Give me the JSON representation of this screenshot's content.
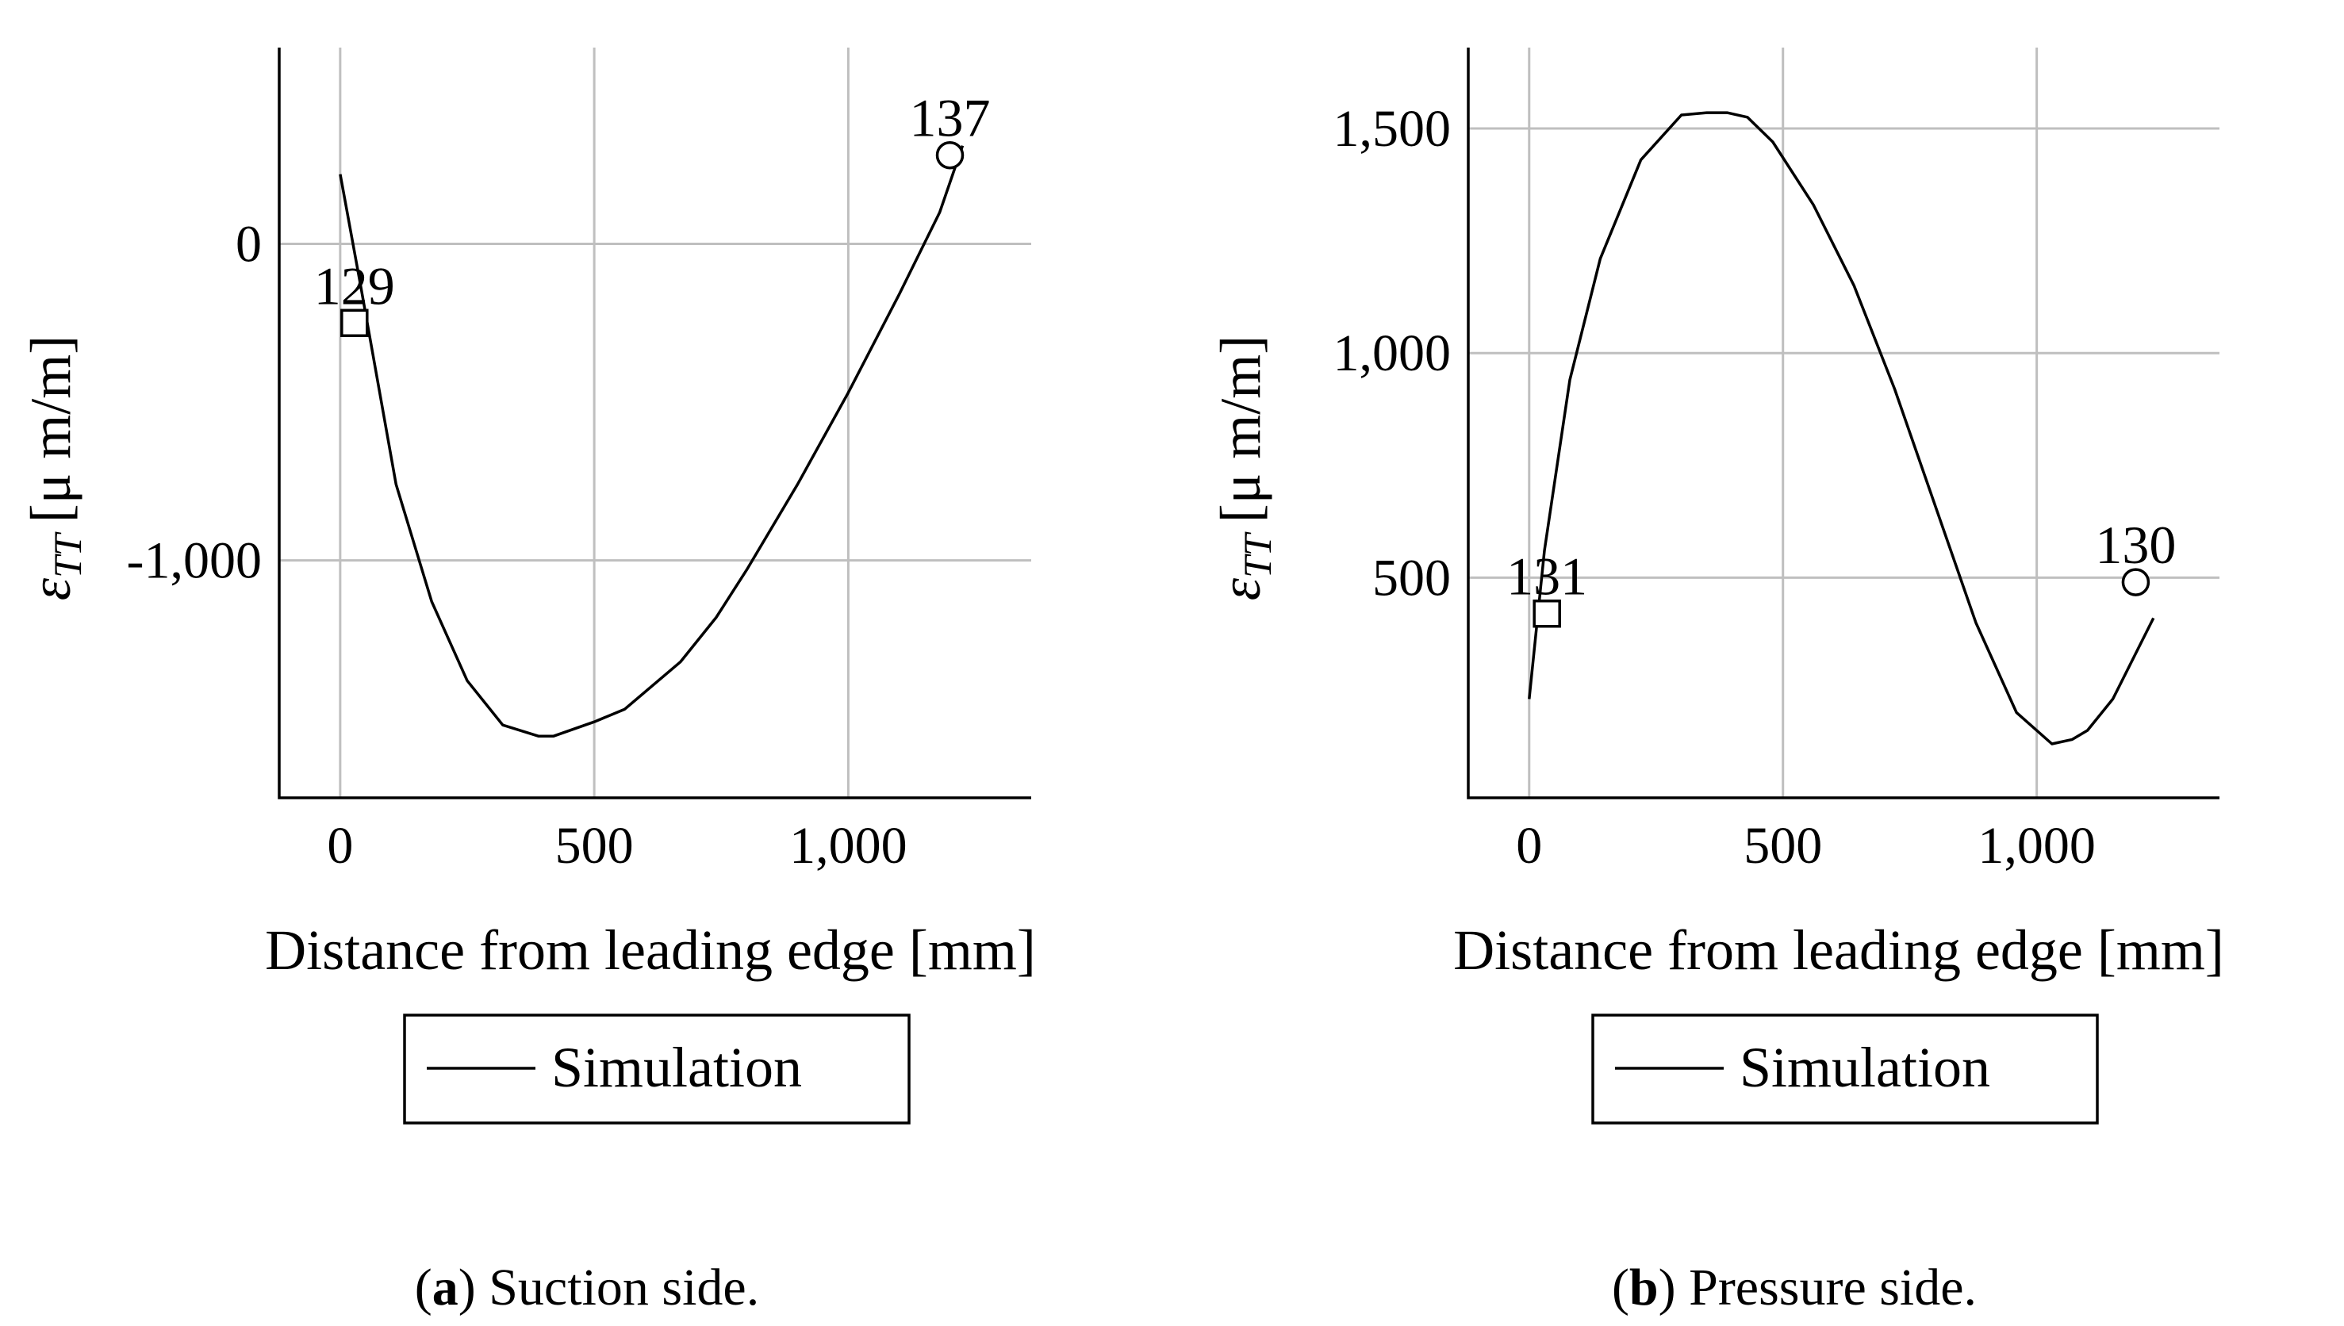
{
  "chart_data": [
    {
      "type": "line",
      "panel": "a",
      "caption_letter": "a",
      "caption_text": ") Suction side.",
      "xlabel": "Distance from leading edge [mm]",
      "ylabel": "εTT [μ m/m]",
      "ylabel_main": "ε",
      "ylabel_sub": "TT",
      "ylabel_unit": "[μ m/m]",
      "xlim": [
        -120,
        1360
      ],
      "ylim": [
        -1750,
        620
      ],
      "xticks": [
        0,
        500,
        1000
      ],
      "xtick_labels": [
        "0",
        "500",
        "1,000"
      ],
      "yticks": [
        0,
        -1000
      ],
      "ytick_labels": [
        "0",
        "-1,000"
      ],
      "legend": [
        "Simulation"
      ],
      "series": [
        {
          "name": "Simulation",
          "x": [
            0,
            40,
            110,
            180,
            250,
            320,
            390,
            420,
            500,
            560,
            670,
            740,
            800,
            900,
            1000,
            1100,
            1180,
            1225
          ],
          "y": [
            220,
            -130,
            -760,
            -1130,
            -1380,
            -1520,
            -1555,
            -1555,
            -1510,
            -1470,
            -1320,
            -1180,
            -1030,
            -760,
            -470,
            -160,
            100,
            310
          ]
        }
      ],
      "markers": [
        {
          "label": "129",
          "x": 28,
          "y": -250,
          "shape": "square"
        },
        {
          "label": "137",
          "x": 1200,
          "y": 280,
          "shape": "circle"
        }
      ]
    },
    {
      "type": "line",
      "panel": "b",
      "caption_letter": "b",
      "caption_text": ") Pressure side.",
      "xlabel": "Distance from leading edge [mm]",
      "ylabel": "εTT [μ m/m]",
      "ylabel_main": "ε",
      "ylabel_sub": "TT",
      "ylabel_unit": "[μ m/m]",
      "xlim": [
        -120,
        1360
      ],
      "ylim": [
        10,
        1680
      ],
      "xticks": [
        0,
        500,
        1000
      ],
      "xtick_labels": [
        "0",
        "500",
        "1,000"
      ],
      "yticks": [
        500,
        1000,
        1500
      ],
      "ytick_labels": [
        "500",
        "1,000",
        "1,500"
      ],
      "legend": [
        "Simulation"
      ],
      "series": [
        {
          "name": "Simulation",
          "x": [
            0,
            30,
            80,
            140,
            220,
            300,
            350,
            390,
            430,
            480,
            560,
            640,
            720,
            800,
            880,
            960,
            1030,
            1070,
            1100,
            1150,
            1230
          ],
          "y": [
            230,
            560,
            940,
            1210,
            1430,
            1530,
            1535,
            1535,
            1525,
            1470,
            1330,
            1150,
            920,
            660,
            400,
            200,
            130,
            140,
            160,
            230,
            410
          ]
        }
      ],
      "markers": [
        {
          "label": "131",
          "x": 35,
          "y": 420,
          "shape": "square"
        },
        {
          "label": "130",
          "x": 1195,
          "y": 490,
          "shape": "circle"
        }
      ]
    }
  ]
}
